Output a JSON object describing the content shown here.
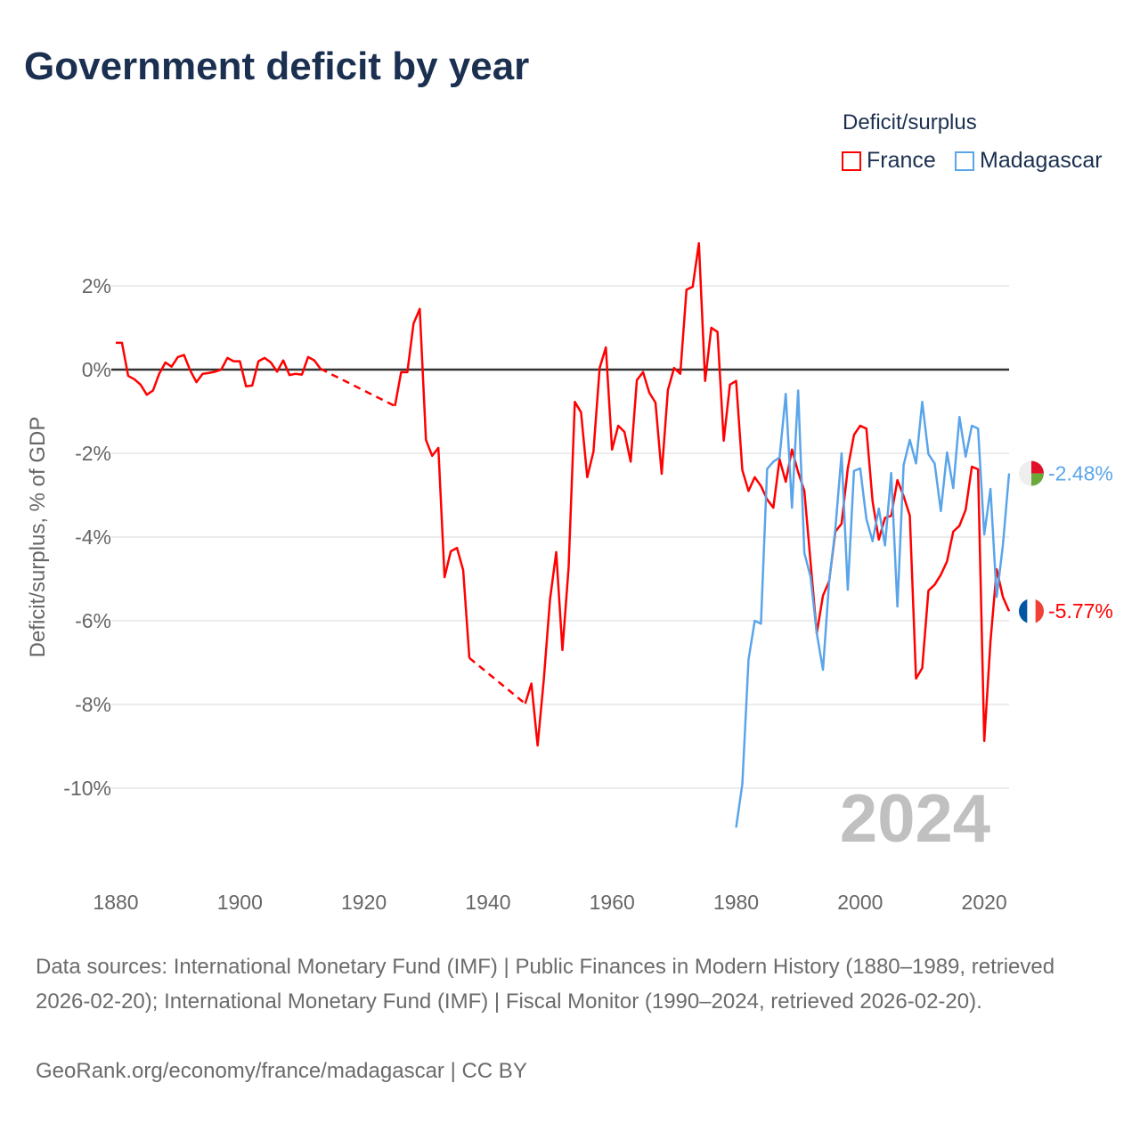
{
  "title": "Government deficit by year",
  "legend": {
    "title": "Deficit/surplus",
    "items": [
      {
        "label": "France",
        "color": "#ff0000"
      },
      {
        "label": "Madagascar",
        "color": "#5aa5ea"
      }
    ]
  },
  "chart_data": {
    "type": "line",
    "title": "Government deficit by year",
    "xlabel": "",
    "ylabel": "Deficit/surplus, % of GDP",
    "xlim": [
      1880,
      2024
    ],
    "ylim": [
      -12,
      3.5
    ],
    "grid": true,
    "legend_position": "top-right",
    "x_ticks": [
      1880,
      1900,
      1920,
      1940,
      1960,
      1980,
      2000,
      2020
    ],
    "x_tick_labels": [
      "1880",
      "1900",
      "1920",
      "1940",
      "1960",
      "1980",
      "2000",
      "2020"
    ],
    "y_ticks": [
      2,
      0,
      -2,
      -4,
      -6,
      -8,
      -10
    ],
    "y_tick_labels": [
      "2%",
      "0%",
      "-2%",
      "-4%",
      "-6%",
      "-8%",
      "-10%"
    ],
    "year_watermark": "2024",
    "series": [
      {
        "name": "France",
        "color": "#ff0000",
        "start_year": 1880,
        "end_label": "-5.77%",
        "values": [
          0.64,
          0.64,
          -0.15,
          -0.23,
          -0.36,
          -0.6,
          -0.5,
          -0.1,
          0.17,
          0.07,
          0.3,
          0.35,
          -0.02,
          -0.3,
          -0.1,
          -0.08,
          -0.05,
          0.0,
          0.28,
          0.2,
          0.2,
          -0.4,
          -0.38,
          0.2,
          0.28,
          0.17,
          -0.05,
          0.22,
          -0.13,
          -0.1,
          -0.12,
          0.3,
          0.22,
          0.02,
          null,
          null,
          null,
          null,
          null,
          null,
          null,
          null,
          null,
          null,
          null,
          -0.87,
          -0.06,
          -0.06,
          1.1,
          1.45,
          -1.68,
          -2.06,
          -1.87,
          -4.96,
          -4.34,
          -4.26,
          -4.79,
          -6.89,
          null,
          null,
          null,
          null,
          null,
          null,
          null,
          null,
          -7.98,
          -7.5,
          -8.98,
          -7.4,
          -5.49,
          -4.36,
          -6.7,
          -4.72,
          -0.77,
          -1.02,
          -2.57,
          -1.96,
          0.04,
          0.53,
          -1.91,
          -1.34,
          -1.49,
          -2.2,
          -0.25,
          -0.06,
          -0.55,
          -0.79,
          -2.49,
          -0.49,
          0.04,
          -0.1,
          1.91,
          1.98,
          3.02,
          -0.27,
          1.0,
          0.9,
          -1.7,
          -0.36,
          -0.27,
          -2.4,
          -2.9,
          -2.57,
          -2.78,
          -3.1,
          -3.3,
          -2.14,
          -2.68,
          -1.91,
          -2.45,
          -2.9,
          -4.6,
          -6.3,
          -5.4,
          -5.05,
          -3.87,
          -3.68,
          -2.36,
          -1.56,
          -1.34,
          -1.41,
          -3.15,
          -4.06,
          -3.54,
          -3.49,
          -2.64,
          -3.02,
          -3.49,
          -7.38,
          -7.13,
          -5.28,
          -5.14,
          -4.9,
          -4.58,
          -3.87,
          -3.73,
          -3.35,
          -2.32,
          -2.38,
          -8.87,
          -6.5,
          -4.77,
          -5.43,
          -5.77
        ]
      },
      {
        "name": "Madagascar",
        "color": "#5aa5ea",
        "start_year": 1980,
        "end_label": "-2.48%",
        "values": [
          -10.94,
          -9.9,
          -6.93,
          -6.0,
          -6.07,
          -2.37,
          -2.2,
          -2.1,
          -0.58,
          -3.3,
          -0.5,
          -4.38,
          -4.95,
          -6.3,
          -7.17,
          -5.05,
          -3.8,
          -2.0,
          -5.26,
          -2.42,
          -2.36,
          -3.57,
          -4.1,
          -3.32,
          -4.2,
          -2.47,
          -5.66,
          -2.28,
          -1.68,
          -2.24,
          -0.77,
          -2.02,
          -2.24,
          -3.38,
          -1.98,
          -2.83,
          -1.13,
          -2.08,
          -1.34,
          -1.41,
          -3.94,
          -2.85,
          -5.43,
          -4.2,
          -2.48
        ]
      }
    ]
  },
  "footer": {
    "sources": "Data sources: International Monetary Fund (IMF) | Public Finances in Modern History (1880–1989, retrieved 2026-02-20); International Monetary Fund (IMF) | Fiscal Monitor (1990–2024, retrieved 2026-02-20).",
    "credit": "GeoRank.org/economy/france/madagascar | CC BY"
  }
}
